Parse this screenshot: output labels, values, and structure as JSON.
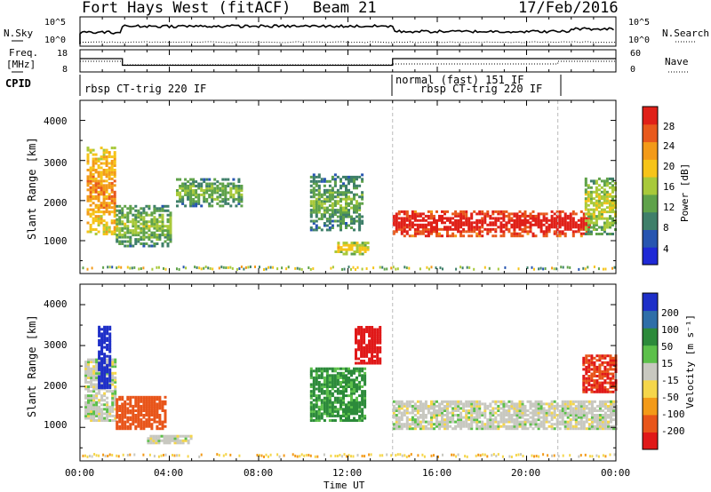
{
  "header": {
    "title": "Fort Hays West (fitACF)",
    "beam": "Beam 21",
    "date": "17/Feb/2016"
  },
  "noise_panel": {
    "left_label": "N.Sky",
    "right_label": "N.Search",
    "left_ticks": [
      "10^5",
      "10^0"
    ],
    "right_ticks": [
      "10^5",
      "10^0"
    ]
  },
  "freq_panel": {
    "left_label_1": "Freq.",
    "left_label_2": "[MHz]",
    "left_ticks": [
      "18",
      "8"
    ],
    "right_label": "Nave",
    "right_ticks": [
      "60",
      "0"
    ]
  },
  "cpid_panel": {
    "label": "CPID",
    "segments": [
      {
        "text": "rbsp CT-trig 220 IF"
      },
      {
        "text": "normal (fast) 151 IF"
      },
      {
        "text": "rbsp CT-trig 220 IF"
      }
    ]
  },
  "x_axis": {
    "label": "Time UT",
    "ticks": [
      "00:00",
      "04:00",
      "08:00",
      "12:00",
      "16:00",
      "20:00",
      "00:00"
    ]
  },
  "power_panel": {
    "ylabel": "Slant Range [km]",
    "yticks": [
      "1000",
      "2000",
      "3000",
      "4000"
    ],
    "colorbar_label": "Power [dB]",
    "colorbar_ticks": [
      "4",
      "8",
      "12",
      "16",
      "20",
      "24",
      "28"
    ],
    "colors": [
      "#1f29d6",
      "#2755b0",
      "#3f7f6a",
      "#5fa24a",
      "#a8c93a",
      "#f6c419",
      "#f39a18",
      "#e8591c",
      "#e02018"
    ]
  },
  "velocity_panel": {
    "ylabel": "Slant Range [km]",
    "yticks": [
      "1000",
      "2000",
      "3000",
      "4000"
    ],
    "colorbar_label": "Velocity [m s⁻¹]",
    "colorbar_ticks": [
      "200",
      "100",
      "50",
      "15",
      "-15",
      "-50",
      "-100",
      "-200"
    ],
    "colors": [
      "#1e2fc8",
      "#2e6ea8",
      "#2c8a3a",
      "#5cc04a",
      "#c8c8c0",
      "#f5d64a",
      "#f39a18",
      "#e8551a",
      "#e01818"
    ]
  },
  "chart_data": {
    "type": "heatmap",
    "x_range_hours": [
      0,
      24
    ],
    "y_range_km": [
      180,
      4500
    ],
    "power_db_range": [
      0,
      30
    ],
    "velocity_range": [
      -250,
      250
    ],
    "freq_mhz_steps": [
      {
        "start_h": 0,
        "end_h": 1.9,
        "mhz": 14
      },
      {
        "start_h": 1.9,
        "end_h": 14,
        "mhz": 11
      },
      {
        "start_h": 14,
        "end_h": 24,
        "mhz": 14
      }
    ],
    "power_regions": [
      {
        "t0": 0.3,
        "t1": 1.6,
        "r0": 1200,
        "r1": 3400,
        "db": 18
      },
      {
        "t0": 1.6,
        "t1": 4.1,
        "r0": 900,
        "r1": 1900,
        "db": 10
      },
      {
        "t0": 4.3,
        "t1": 7.2,
        "r0": 1900,
        "r1": 2600,
        "db": 9
      },
      {
        "t0": 10.3,
        "t1": 12.6,
        "r0": 1300,
        "r1": 2700,
        "db": 8
      },
      {
        "t0": 11.4,
        "t1": 12.9,
        "r0": 700,
        "r1": 1000,
        "db": 14
      },
      {
        "t0": 14.0,
        "t1": 22.8,
        "r0": 1150,
        "r1": 1800,
        "db": 26
      },
      {
        "t0": 22.6,
        "t1": 24.0,
        "r0": 1200,
        "r1": 2600,
        "db": 12
      }
    ],
    "velocity_regions": [
      {
        "t0": 0.2,
        "t1": 1.6,
        "r0": 1200,
        "r1": 2700,
        "v": 0
      },
      {
        "t0": 0.8,
        "t1": 1.4,
        "r0": 2000,
        "r1": 3500,
        "v": 200
      },
      {
        "t0": 1.6,
        "t1": 3.8,
        "r0": 1000,
        "r1": 1800,
        "v": -100
      },
      {
        "t0": 3.0,
        "t1": 5.0,
        "r0": 650,
        "r1": 850,
        "v": 0
      },
      {
        "t0": 10.3,
        "t1": 12.8,
        "r0": 1200,
        "r1": 2500,
        "v": 40
      },
      {
        "t0": 12.3,
        "t1": 13.4,
        "r0": 2600,
        "r1": 3500,
        "v": -200
      },
      {
        "t0": 14.0,
        "t1": 24.0,
        "r0": 1000,
        "r1": 1700,
        "v": 0
      },
      {
        "t0": 22.5,
        "t1": 24.0,
        "r0": 1900,
        "r1": 2800,
        "v": -150
      }
    ]
  }
}
